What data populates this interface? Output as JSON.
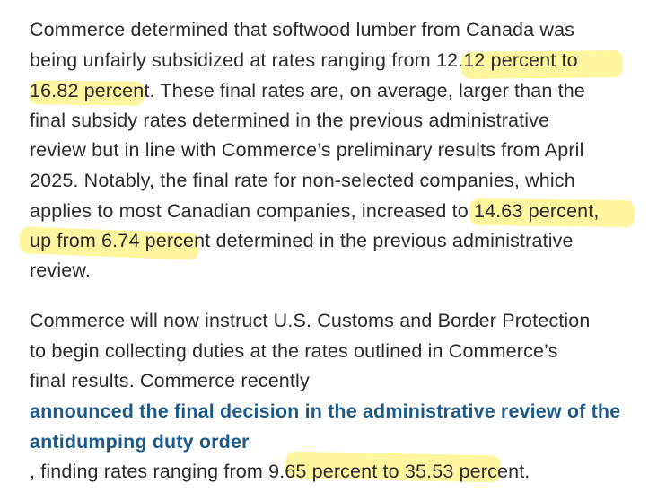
{
  "colors": {
    "text": "#2b2b2b",
    "link": "#1c5a8c",
    "highlight": "#fff050"
  },
  "paragraph1": {
    "lines": [
      "Commerce determined that softwood lumber from Canada was",
      "being unfairly subsidized at rates ranging from 12.12 percent to",
      "16.82 percent.  These final rates are, on average, larger than the",
      "final subsidy rates determined in the previous administrative",
      "review but in line with Commerce’s preliminary results from April",
      "2025. Notably, the final rate for non-selected companies, which",
      "applies to most Canadian companies, increased to 14.63 percent,",
      "up from 6.74 percent determined in the previous administrative",
      "review."
    ]
  },
  "paragraph2": {
    "lines": [
      "Commerce will now instruct U.S. Customs and Border Protection",
      "to begin collecting duties at the rates outlined in Commerce’s",
      "final results. Commerce recently"
    ],
    "link_lines": [
      "announced the final decision in the administrative review of the",
      "antidumping duty order"
    ],
    "tail_line": ", finding rates ranging from 9.65 percent to 35.53 percent."
  }
}
